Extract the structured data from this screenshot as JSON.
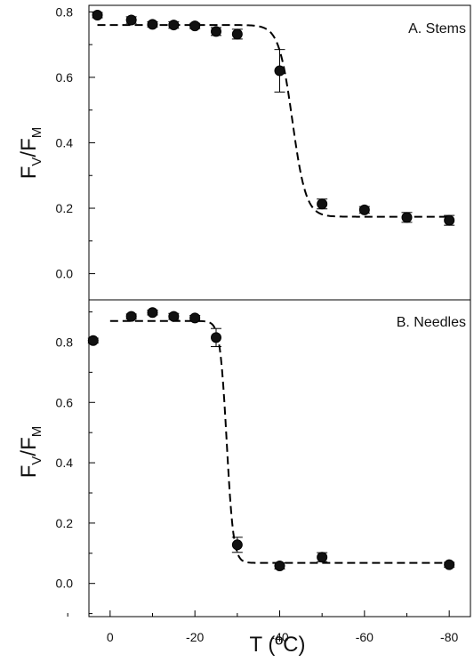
{
  "chart_data": [
    {
      "type": "scatter",
      "title": "A. Stems",
      "xlabel": "T (ºC)",
      "ylabel": "FV/FM",
      "ylabel_main": "F",
      "ylabel_sub1": "V",
      "ylabel_mid": "/F",
      "ylabel_sub2": "M",
      "xlim": [
        5,
        -85
      ],
      "ylim": [
        -0.08,
        0.82
      ],
      "yticks": [
        0.0,
        0.2,
        0.4,
        0.6,
        0.8
      ],
      "ytick_labels": [
        "0.0",
        "0.2",
        "0.4",
        "0.6",
        "0.8"
      ],
      "grid": false,
      "series": [
        {
          "x": [
            3,
            -5,
            -10,
            -15,
            -20,
            -25,
            -30,
            -40,
            -50,
            -60,
            -70,
            -80
          ],
          "y": [
            0.79,
            0.775,
            0.762,
            0.76,
            0.757,
            0.74,
            0.732,
            0.62,
            0.213,
            0.195,
            0.172,
            0.163
          ],
          "err": [
            0.008,
            0.01,
            0.008,
            0.01,
            0.008,
            0.012,
            0.015,
            0.065,
            0.015,
            0.01,
            0.015,
            0.015
          ]
        }
      ],
      "fit": {
        "type": "sigmoid",
        "style": "dashed",
        "top": 0.76,
        "bottom": 0.174,
        "midpoint": -43,
        "slope": 1.6,
        "x_start": 3,
        "x_end": -80
      }
    },
    {
      "type": "scatter",
      "title": "B. Needles",
      "xlabel": "T (ºC)",
      "ylabel": "FV/FM",
      "ylabel_main": "F",
      "ylabel_sub1": "V",
      "ylabel_mid": "/F",
      "ylabel_sub2": "M",
      "xlim": [
        5,
        -85
      ],
      "ylim": [
        -0.11,
        0.94
      ],
      "yticks": [
        0.0,
        0.2,
        0.4,
        0.6,
        0.8
      ],
      "ytick_labels": [
        "0.0",
        "0.2",
        "0.4",
        "0.6",
        "0.8"
      ],
      "xticks": [
        0,
        -20,
        -40,
        -60,
        -80
      ],
      "xtick_labels": [
        "0",
        "-20",
        "-40",
        "-60",
        "-80"
      ],
      "grid": false,
      "series": [
        {
          "x": [
            4,
            -5,
            -10,
            -15,
            -20,
            -25,
            -30,
            -40,
            -50,
            -80
          ],
          "y": [
            0.805,
            0.885,
            0.898,
            0.885,
            0.88,
            0.815,
            0.128,
            0.058,
            0.087,
            0.062
          ],
          "err": [
            0.008,
            0.008,
            0.008,
            0.01,
            0.008,
            0.03,
            0.025,
            0.01,
            0.015,
            0.008
          ]
        }
      ],
      "fit": {
        "type": "sigmoid",
        "style": "dashed",
        "top": 0.87,
        "bottom": 0.068,
        "midpoint": -27.5,
        "slope": 0.8,
        "x_start": 0,
        "x_end": -80
      }
    }
  ]
}
